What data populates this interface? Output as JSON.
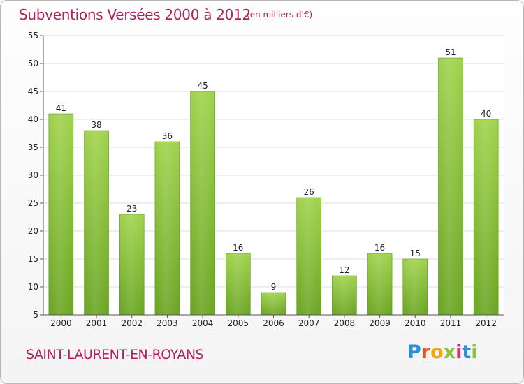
{
  "header": {
    "title": "Subventions Versées 2000 à 2012",
    "unit": "(en milliers d'€)"
  },
  "footer": {
    "commune": "SAINT-LAURENT-EN-ROYANS",
    "logo_text": "Proxiti",
    "logo_colors": [
      "#2a8fd6",
      "#e8531f",
      "#f2a614",
      "#8ac43f",
      "#e3287a",
      "#2a8fd6",
      "#8ac43f"
    ]
  },
  "chart_data": {
    "type": "bar",
    "title": "Subventions Versées 2000 à 2012",
    "subtitle": "(en milliers d'€)",
    "xlabel": "",
    "ylabel": "",
    "categories": [
      "2000",
      "2001",
      "2002",
      "2003",
      "2004",
      "2005",
      "2006",
      "2007",
      "2008",
      "2009",
      "2010",
      "2011",
      "2012"
    ],
    "values": [
      41,
      38,
      23,
      36,
      45,
      16,
      9,
      26,
      12,
      16,
      15,
      51,
      40
    ],
    "ylim": [
      5,
      55
    ],
    "yticks": [
      5,
      10,
      15,
      20,
      25,
      30,
      35,
      40,
      45,
      50,
      55
    ],
    "grid": true,
    "bar_color": "#7ab22c",
    "bar_color_light": "#9dd04a"
  }
}
